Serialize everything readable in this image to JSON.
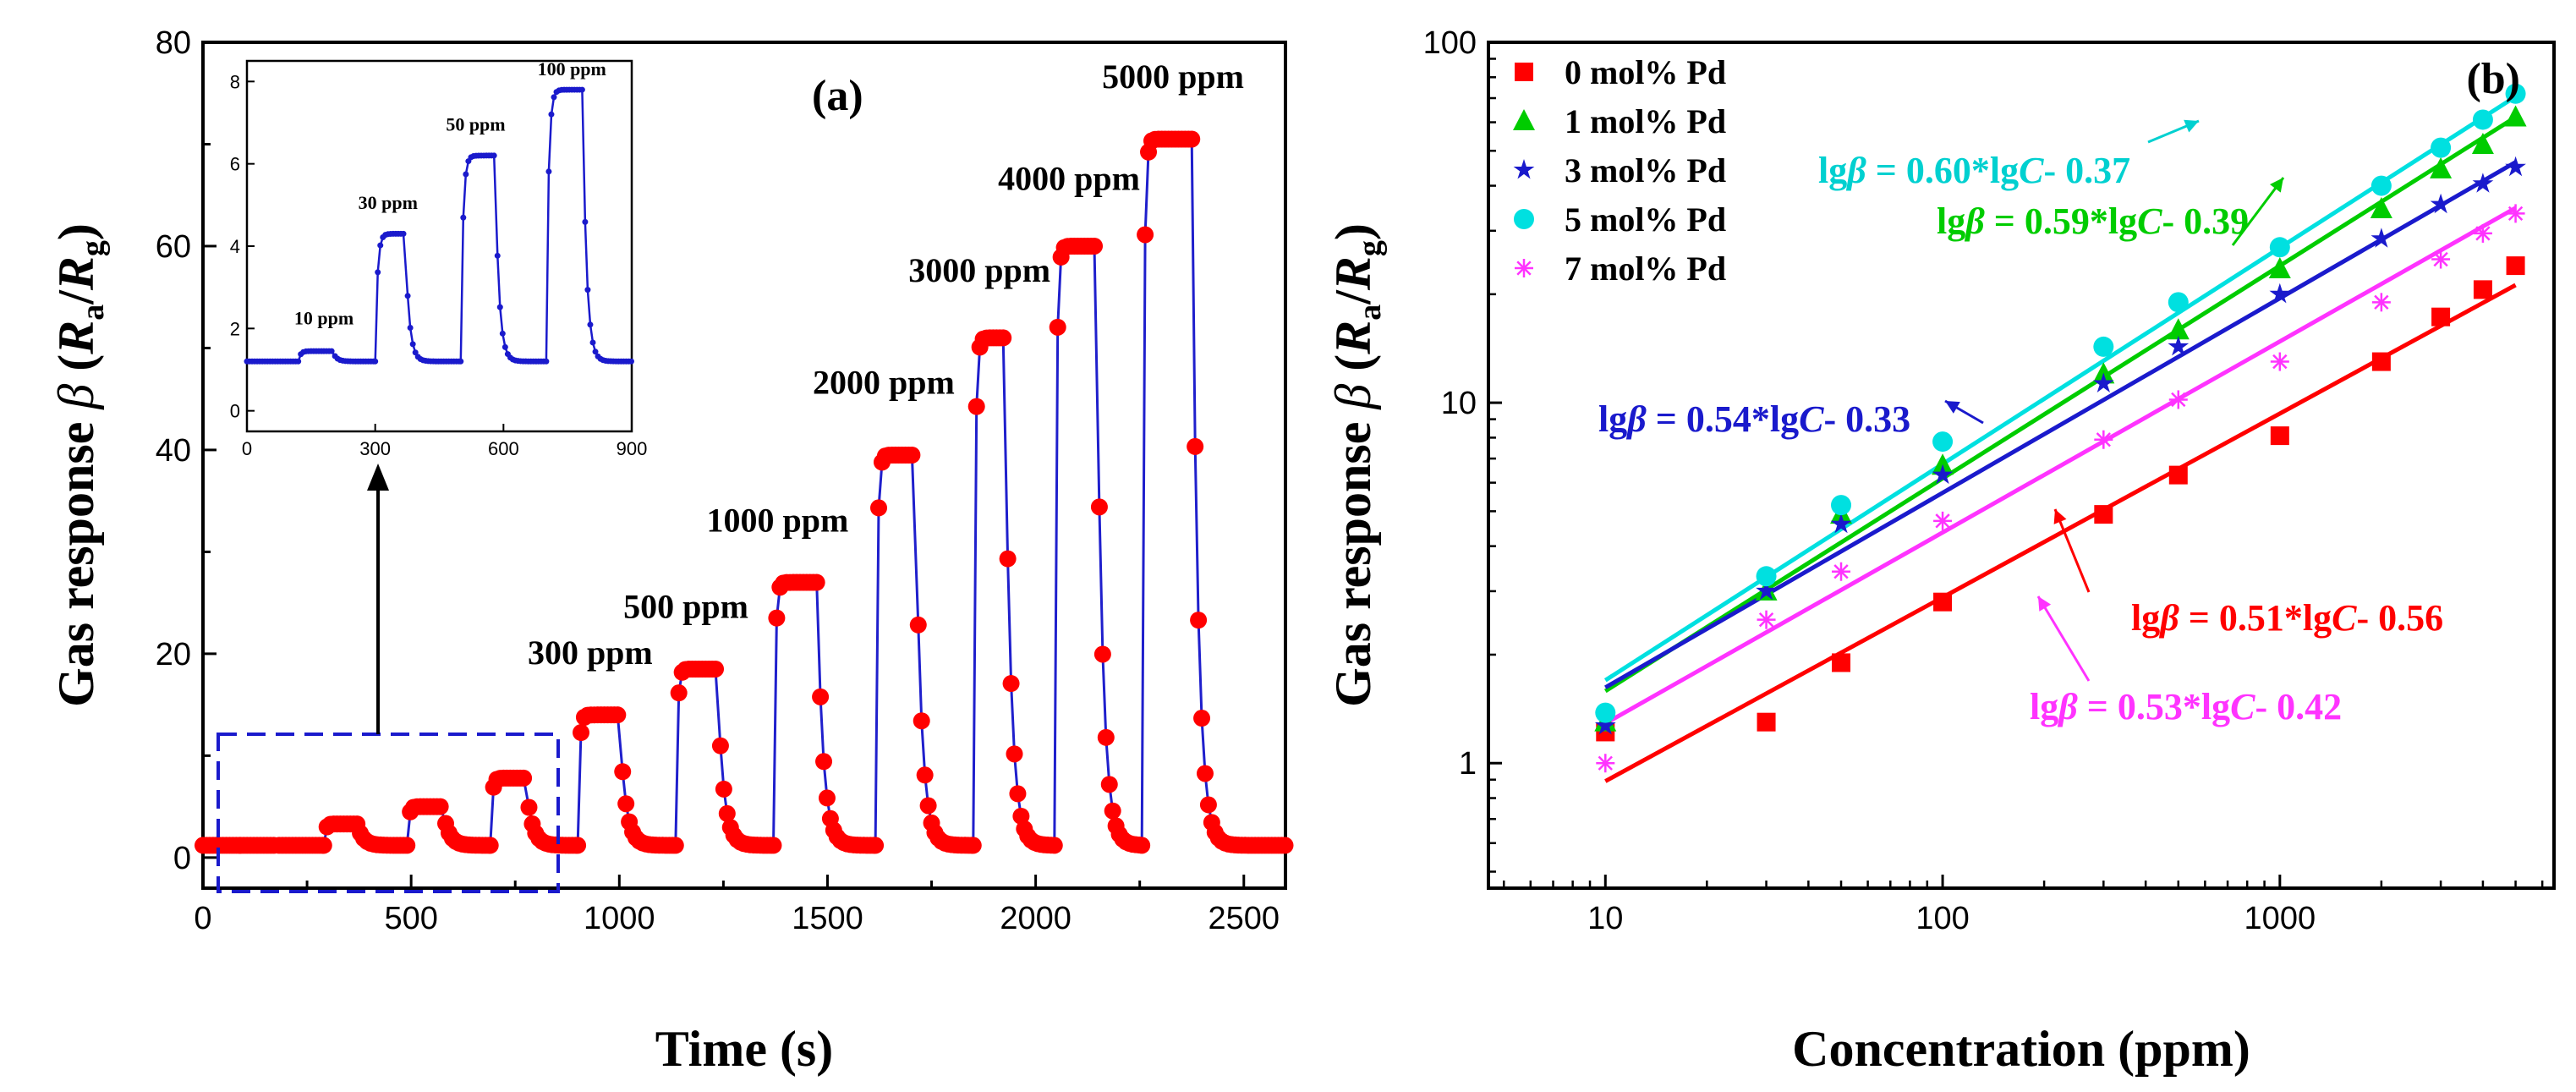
{
  "chart_data": [
    {
      "id": "a",
      "type": "line",
      "panel_label": "(a)",
      "xlabel": "Time (s)",
      "xlim": [
        0,
        2600
      ],
      "ylim": [
        -3,
        80
      ],
      "xticks": [
        0,
        500,
        1000,
        1500,
        2000,
        2500
      ],
      "yticks": [
        0,
        20,
        40,
        60,
        80
      ],
      "ylabel_prefix": "Gas response ",
      "ylabel_beta": "β",
      "ylabel_R1": "R",
      "ylabel_sub1": "a",
      "ylabel_slash": "/",
      "ylabel_R2": "R",
      "ylabel_sub2": "g",
      "series_color": "#ff0000",
      "line_color": "#1f1fcc",
      "pulses": [
        {
          "ppm": 10,
          "on": 90,
          "off": 175,
          "value": 1.2
        },
        {
          "ppm": 30,
          "on": 290,
          "off": 370,
          "value": 3.3
        },
        {
          "ppm": 50,
          "on": 490,
          "off": 575,
          "value": 5.0
        },
        {
          "ppm": 100,
          "on": 690,
          "off": 775,
          "value": 7.8
        },
        {
          "ppm": 300,
          "on": 900,
          "off": 1000,
          "value": 14.0
        },
        {
          "ppm": 500,
          "on": 1135,
          "off": 1235,
          "value": 18.5
        },
        {
          "ppm": 1000,
          "on": 1370,
          "off": 1475,
          "value": 27.0
        },
        {
          "ppm": 2000,
          "on": 1615,
          "off": 1710,
          "value": 39.5
        },
        {
          "ppm": 3000,
          "on": 1850,
          "off": 1925,
          "value": 51.0
        },
        {
          "ppm": 4000,
          "on": 2045,
          "off": 2145,
          "value": 60.0
        },
        {
          "ppm": 5000,
          "on": 2255,
          "off": 2375,
          "value": 70.5
        }
      ],
      "baseline": 1.2,
      "pulse_labels": [
        {
          "text": "300 ppm",
          "x": 930,
          "y": 19
        },
        {
          "text": "500 ppm",
          "x": 1160,
          "y": 23.5
        },
        {
          "text": "1000 ppm",
          "x": 1380,
          "y": 32
        },
        {
          "text": "2000 ppm",
          "x": 1635,
          "y": 45.5
        },
        {
          "text": "3000 ppm",
          "x": 1865,
          "y": 56.5
        },
        {
          "text": "4000 ppm",
          "x": 2080,
          "y": 65.5
        },
        {
          "text": "5000 ppm",
          "x": 2330,
          "y": 75.5
        }
      ],
      "inset": {
        "type": "line",
        "xlim": [
          0,
          900
        ],
        "ylim": [
          -0.5,
          8.5
        ],
        "xticks": [
          0,
          300,
          600,
          900
        ],
        "yticks": [
          0,
          2,
          4,
          6,
          8
        ],
        "color": "#1a1acc",
        "baseline": 1.2,
        "pulses": [
          {
            "ppm": 10,
            "on": 120,
            "off": 200,
            "value": 1.45
          },
          {
            "ppm": 30,
            "on": 300,
            "off": 370,
            "value": 4.3
          },
          {
            "ppm": 50,
            "on": 500,
            "off": 580,
            "value": 6.2
          },
          {
            "ppm": 100,
            "on": 700,
            "off": 785,
            "value": 7.8
          }
        ],
        "labels": [
          {
            "text": "10 ppm",
            "x": 180,
            "y": 2.1
          },
          {
            "text": "30 ppm",
            "x": 330,
            "y": 4.9
          },
          {
            "text": "50 ppm",
            "x": 535,
            "y": 6.8
          },
          {
            "text": "100 ppm",
            "x": 760,
            "y": 8.15
          }
        ]
      }
    },
    {
      "id": "b",
      "type": "scatter",
      "panel_label": "(b)",
      "xlabel": "Concentration (ppm)",
      "xscale": "log",
      "yscale": "log",
      "xlim": [
        4.5,
        6500
      ],
      "ylim": [
        0.45,
        100
      ],
      "xticks": [
        10,
        100,
        1000
      ],
      "yticks": [
        1,
        10,
        100
      ],
      "ylabel_prefix": "Gas response ",
      "ylabel_beta": "β",
      "ylabel_R1": "R",
      "ylabel_sub1": "a",
      "ylabel_slash": "/",
      "ylabel_R2": "R",
      "ylabel_sub2": "g",
      "x": [
        10,
        30,
        50,
        100,
        300,
        500,
        1000,
        2000,
        3000,
        4000,
        5000
      ],
      "series": [
        {
          "name": "0 mol% Pd",
          "color": "#ff0000",
          "marker": "square",
          "slope": 0.51,
          "intercept": -0.56,
          "values": [
            1.22,
            1.3,
            1.9,
            2.8,
            4.9,
            6.3,
            8.1,
            13.0,
            17.3,
            20.6,
            24.0
          ]
        },
        {
          "name": "1 mol% Pd",
          "color": "#00cc00",
          "marker": "triangle",
          "slope": 0.59,
          "intercept": -0.39,
          "values": [
            1.3,
            3.0,
            4.9,
            6.7,
            12.0,
            15.9,
            23.5,
            34.5,
            44.5,
            52.0,
            62.0
          ]
        },
        {
          "name": "3 mol% Pd",
          "color": "#1a1acc",
          "marker": "star",
          "slope": 0.54,
          "intercept": -0.33,
          "values": [
            1.27,
            3.0,
            4.6,
            6.3,
            11.3,
            14.3,
            20.0,
            28.5,
            35.5,
            40.5,
            45.0
          ]
        },
        {
          "name": "5 mol% Pd",
          "color": "#00e0e0",
          "marker": "circle",
          "slope": 0.6,
          "intercept": -0.37,
          "values": [
            1.38,
            3.3,
            5.2,
            7.8,
            14.3,
            19.0,
            27.0,
            40.0,
            51.0,
            61.0,
            72.0
          ]
        },
        {
          "name": "7 mol% Pd",
          "color": "#ff33ff",
          "marker": "asterisk",
          "slope": 0.53,
          "intercept": -0.42,
          "values": [
            1.0,
            2.5,
            3.4,
            4.7,
            7.9,
            10.2,
            13.0,
            19.0,
            25.0,
            29.5,
            33.5
          ]
        }
      ],
      "annotations": [
        {
          "prefix": "lg",
          "beta": "β",
          "mid": " = 0.60*lg",
          "C": "C",
          "rest": "- 0.37",
          "color": "#00d0d0"
        },
        {
          "prefix": "lg",
          "beta": "β",
          "mid": " = 0.59*lg",
          "C": "C",
          "rest": "- 0.39",
          "color": "#00cc00"
        },
        {
          "prefix": "lg",
          "beta": "β",
          "mid": " = 0.54*lg",
          "C": "C",
          "rest": "- 0.33",
          "color": "#1a1acc"
        },
        {
          "prefix": "lg",
          "beta": "β",
          "mid": " = 0.51*lg",
          "C": "C",
          "rest": "- 0.56",
          "color": "#ff0000"
        },
        {
          "prefix": "lg",
          "beta": "β",
          "mid": " = 0.53*lg",
          "C": "C",
          "rest": "- 0.42",
          "color": "#ff33ff"
        }
      ]
    }
  ]
}
